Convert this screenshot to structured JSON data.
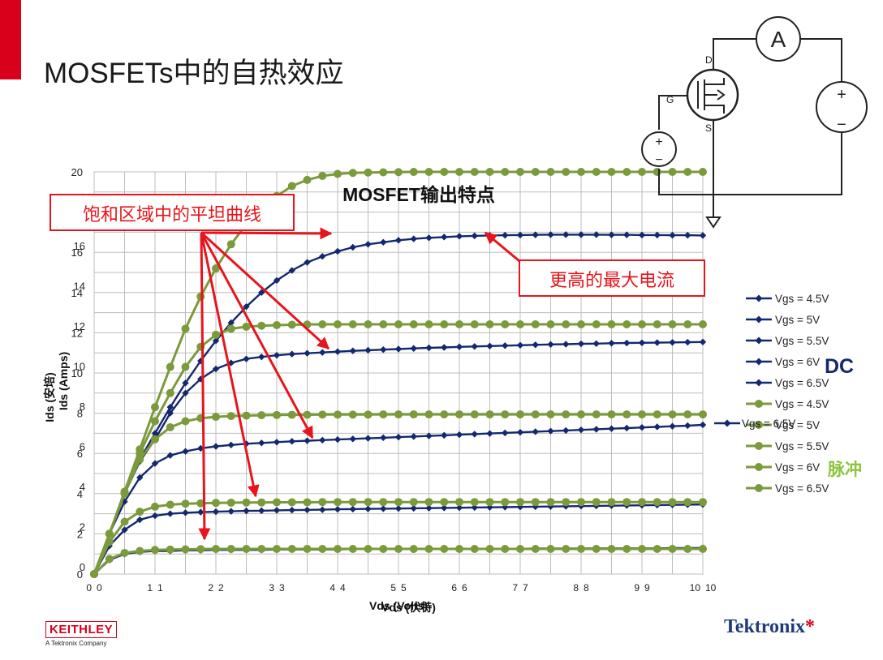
{
  "slide": {
    "title": "MOSFETs中的自热效应",
    "chart_title": "MOSFET输出特点",
    "callout_flat": "饱和区域中的平坦曲线",
    "callout_peak": "更高的最大电流",
    "dc_label": "DC",
    "pulse_label": "脉冲",
    "brand_left": "KEITHLEY",
    "brand_left_sub": "A Tektronix Company",
    "brand_right": "Tektronix"
  },
  "circuit": {
    "ammeter": "A",
    "gate": "G",
    "drain": "D",
    "source": "S",
    "plus": "+",
    "minus": "−"
  },
  "colors": {
    "dc": "#14286e",
    "pulse": "#7b9a3c",
    "accent": "#e8141c",
    "grid": "#bdbdbd"
  },
  "chart_data": {
    "type": "line",
    "title": "MOSFET输出特点",
    "xlabel": "Vds (伏特)",
    "xlabel_alt": "Vds (Volts)",
    "ylabel": "Ids (安培)",
    "ylabel_alt": "Ids (Amps)",
    "xlim": [
      0,
      10
    ],
    "ylim": [
      0,
      20
    ],
    "xticks": [
      "0",
      "1",
      "2",
      "3",
      "4",
      "5",
      "6",
      "7",
      "8",
      "9",
      "10"
    ],
    "yticks": [
      "0",
      "2",
      "4",
      "6",
      "8",
      "10",
      "12",
      "14",
      "16",
      "18",
      "20"
    ],
    "yticks_alt": [
      "0",
      "2",
      "4",
      "6",
      "8",
      "10",
      "12",
      "14",
      "16"
    ],
    "grid": true,
    "legend_position": "right",
    "x": [
      0,
      0.25,
      0.5,
      0.75,
      1,
      1.25,
      1.5,
      1.75,
      2,
      2.25,
      2.5,
      2.75,
      3,
      3.25,
      3.5,
      3.75,
      4,
      4.25,
      4.5,
      4.75,
      5,
      5.25,
      5.5,
      5.75,
      6,
      6.25,
      6.5,
      6.75,
      7,
      7.25,
      7.5,
      7.75,
      8,
      8.25,
      8.5,
      8.75,
      9,
      9.25,
      9.5,
      9.75,
      10
    ],
    "series": [
      {
        "name": "Vgs = 4.5V",
        "group": "DC",
        "markers": "diamond",
        "values": [
          0,
          0.7,
          1.0,
          1.1,
          1.15,
          1.15,
          1.18,
          1.18,
          1.2,
          1.2,
          1.2,
          1.2,
          1.22,
          1.22,
          1.22,
          1.22,
          1.22,
          1.24,
          1.24,
          1.24,
          1.24,
          1.24,
          1.25,
          1.25,
          1.25,
          1.26,
          1.26,
          1.26,
          1.26,
          1.27,
          1.27,
          1.27,
          1.27,
          1.28,
          1.28,
          1.28,
          1.28,
          1.28,
          1.29,
          1.29,
          1.3
        ]
      },
      {
        "name": "Vgs = 5V",
        "group": "DC",
        "markers": "diamond",
        "values": [
          0,
          1.4,
          2.2,
          2.7,
          2.9,
          3.0,
          3.05,
          3.08,
          3.1,
          3.12,
          3.14,
          3.15,
          3.17,
          3.18,
          3.19,
          3.2,
          3.22,
          3.23,
          3.24,
          3.25,
          3.26,
          3.27,
          3.28,
          3.29,
          3.3,
          3.31,
          3.32,
          3.33,
          3.34,
          3.35,
          3.36,
          3.37,
          3.38,
          3.39,
          3.4,
          3.41,
          3.42,
          3.43,
          3.44,
          3.45,
          3.46
        ]
      },
      {
        "name": "Vgs = 5.5V",
        "group": "DC",
        "markers": "diamond",
        "values": [
          0,
          2.0,
          3.6,
          4.8,
          5.5,
          5.9,
          6.1,
          6.25,
          6.35,
          6.42,
          6.48,
          6.52,
          6.56,
          6.6,
          6.63,
          6.66,
          6.69,
          6.72,
          6.75,
          6.78,
          6.81,
          6.84,
          6.87,
          6.9,
          6.93,
          6.96,
          6.99,
          7.02,
          7.05,
          7.08,
          7.11,
          7.14,
          7.17,
          7.2,
          7.23,
          7.26,
          7.29,
          7.32,
          7.35,
          7.38,
          7.42
        ]
      },
      {
        "name": "Vgs = 6V",
        "group": "DC",
        "markers": "diamond",
        "values": [
          0,
          2.0,
          4.0,
          5.6,
          6.7,
          8.0,
          9.0,
          9.7,
          10.2,
          10.5,
          10.7,
          10.8,
          10.88,
          10.94,
          10.98,
          11.02,
          11.06,
          11.1,
          11.13,
          11.16,
          11.19,
          11.22,
          11.25,
          11.27,
          11.3,
          11.32,
          11.34,
          11.36,
          11.38,
          11.4,
          11.42,
          11.43,
          11.45,
          11.46,
          11.48,
          11.49,
          11.5,
          11.51,
          11.52,
          11.53,
          11.54
        ]
      },
      {
        "name": "Vgs = 6.5V",
        "group": "DC",
        "markers": "diamond",
        "values": [
          0,
          2.0,
          4.0,
          5.7,
          7.0,
          8.3,
          9.5,
          10.6,
          11.6,
          12.5,
          13.3,
          14.0,
          14.6,
          15.1,
          15.5,
          15.8,
          16.05,
          16.25,
          16.4,
          16.5,
          16.6,
          16.67,
          16.72,
          16.76,
          16.8,
          16.82,
          16.84,
          16.85,
          16.86,
          16.87,
          16.88,
          16.88,
          16.88,
          16.88,
          16.87,
          16.87,
          16.86,
          16.86,
          16.85,
          16.85,
          16.84
        ]
      },
      {
        "name": "Vgs = 4.5V",
        "group": "Pulse",
        "markers": "circle",
        "values": [
          0,
          0.75,
          1.05,
          1.15,
          1.2,
          1.22,
          1.23,
          1.24,
          1.25,
          1.25,
          1.25,
          1.25,
          1.25,
          1.25,
          1.25,
          1.25,
          1.25,
          1.25,
          1.25,
          1.25,
          1.25,
          1.25,
          1.25,
          1.25,
          1.25,
          1.25,
          1.25,
          1.25,
          1.25,
          1.25,
          1.25,
          1.25,
          1.25,
          1.25,
          1.25,
          1.25,
          1.25,
          1.25,
          1.25,
          1.25,
          1.25
        ]
      },
      {
        "name": "Vgs = 5V",
        "group": "Pulse",
        "markers": "circle",
        "values": [
          0,
          1.6,
          2.6,
          3.1,
          3.35,
          3.45,
          3.5,
          3.52,
          3.54,
          3.55,
          3.56,
          3.56,
          3.57,
          3.57,
          3.57,
          3.58,
          3.58,
          3.58,
          3.58,
          3.58,
          3.58,
          3.58,
          3.58,
          3.58,
          3.58,
          3.58,
          3.58,
          3.58,
          3.58,
          3.58,
          3.58,
          3.58,
          3.58,
          3.58,
          3.58,
          3.58,
          3.58,
          3.58,
          3.58,
          3.58,
          3.58
        ]
      },
      {
        "name": "Vgs = 5.5V",
        "group": "Pulse",
        "markers": "circle",
        "values": [
          0,
          2.0,
          4.0,
          5.7,
          6.7,
          7.3,
          7.6,
          7.75,
          7.82,
          7.86,
          7.88,
          7.9,
          7.91,
          7.92,
          7.92,
          7.93,
          7.93,
          7.93,
          7.93,
          7.94,
          7.94,
          7.94,
          7.94,
          7.94,
          7.94,
          7.94,
          7.94,
          7.94,
          7.94,
          7.94,
          7.94,
          7.94,
          7.94,
          7.94,
          7.94,
          7.94,
          7.94,
          7.94,
          7.94,
          7.94,
          7.94
        ]
      },
      {
        "name": "Vgs = 6V",
        "group": "Pulse",
        "markers": "circle",
        "values": [
          0,
          2.0,
          4.0,
          6.0,
          7.6,
          9.0,
          10.3,
          11.3,
          11.9,
          12.2,
          12.3,
          12.35,
          12.38,
          12.4,
          12.41,
          12.42,
          12.42,
          12.42,
          12.42,
          12.42,
          12.42,
          12.42,
          12.42,
          12.42,
          12.42,
          12.42,
          12.42,
          12.42,
          12.42,
          12.42,
          12.42,
          12.42,
          12.42,
          12.42,
          12.42,
          12.42,
          12.42,
          12.42,
          12.42,
          12.42,
          12.42
        ]
      },
      {
        "name": "Vgs = 6.5V",
        "group": "Pulse",
        "markers": "circle",
        "values": [
          0,
          2.0,
          4.1,
          6.2,
          8.3,
          10.3,
          12.2,
          13.8,
          15.2,
          16.4,
          17.4,
          18.2,
          18.8,
          19.3,
          19.6,
          19.8,
          19.9,
          19.95,
          19.97,
          19.98,
          19.99,
          20.0,
          20.0,
          20.0,
          20.0,
          20.0,
          20.0,
          20.0,
          20.0,
          20.0,
          20.0,
          20.0,
          20.0,
          20.0,
          20.0,
          20.0,
          20.0,
          20.0,
          20.0,
          20.0,
          20.0
        ]
      }
    ]
  }
}
